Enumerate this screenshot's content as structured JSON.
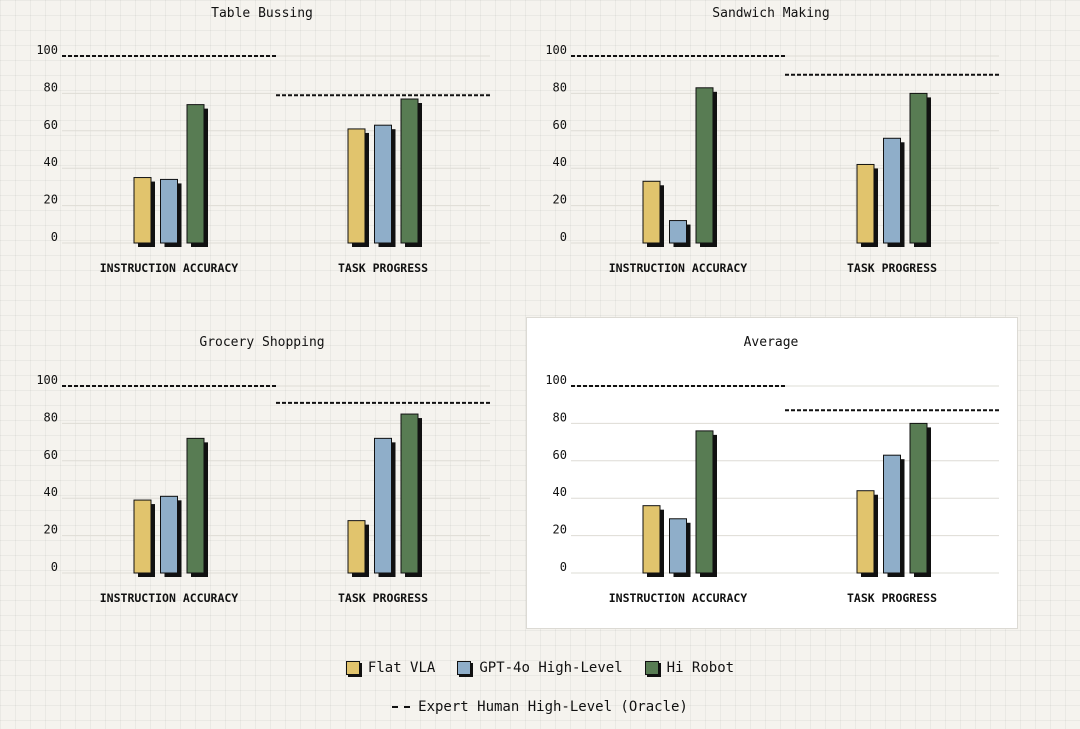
{
  "colors": {
    "flat_vla": "#e1c46d",
    "gpt4o": "#8faec9",
    "hi_robot": "#587c53",
    "shadow": "#111111",
    "grid": "#dedcd5",
    "oracle": "#111111"
  },
  "legend": {
    "items": [
      {
        "label": "Flat VLA",
        "color": "#e1c46d"
      },
      {
        "label": "GPT-4o High-Level",
        "color": "#8faec9"
      },
      {
        "label": "Hi Robot",
        "color": "#587c53"
      }
    ],
    "oracle_label": "Expert Human High-Level (Oracle)"
  },
  "chart_data": [
    {
      "type": "bar",
      "title": "Table Bussing",
      "categories": [
        "INSTRUCTION ACCURACY",
        "TASK PROGRESS"
      ],
      "series": [
        {
          "name": "Flat VLA",
          "values": [
            35,
            61
          ]
        },
        {
          "name": "GPT-4o High-Level",
          "values": [
            34,
            63
          ]
        },
        {
          "name": "Hi Robot",
          "values": [
            74,
            77
          ]
        }
      ],
      "oracle": [
        100,
        79
      ],
      "yticks": [
        0,
        20,
        40,
        60,
        80,
        100
      ],
      "ylim": [
        0,
        100
      ]
    },
    {
      "type": "bar",
      "title": "Sandwich Making",
      "categories": [
        "INSTRUCTION ACCURACY",
        "TASK PROGRESS"
      ],
      "series": [
        {
          "name": "Flat VLA",
          "values": [
            33,
            42
          ]
        },
        {
          "name": "GPT-4o High-Level",
          "values": [
            12,
            56
          ]
        },
        {
          "name": "Hi Robot",
          "values": [
            83,
            80
          ]
        }
      ],
      "oracle": [
        100,
        90
      ],
      "yticks": [
        0,
        20,
        40,
        60,
        80,
        100
      ],
      "ylim": [
        0,
        100
      ]
    },
    {
      "type": "bar",
      "title": "Grocery Shopping",
      "categories": [
        "INSTRUCTION ACCURACY",
        "TASK PROGRESS"
      ],
      "series": [
        {
          "name": "Flat VLA",
          "values": [
            39,
            28
          ]
        },
        {
          "name": "GPT-4o High-Level",
          "values": [
            41,
            72
          ]
        },
        {
          "name": "Hi Robot",
          "values": [
            72,
            85
          ]
        }
      ],
      "oracle": [
        100,
        91
      ],
      "yticks": [
        0,
        20,
        40,
        60,
        80,
        100
      ],
      "ylim": [
        0,
        100
      ]
    },
    {
      "type": "bar",
      "title": "Average",
      "categories": [
        "INSTRUCTION ACCURACY",
        "TASK PROGRESS"
      ],
      "series": [
        {
          "name": "Flat VLA",
          "values": [
            36,
            44
          ]
        },
        {
          "name": "GPT-4o High-Level",
          "values": [
            29,
            63
          ]
        },
        {
          "name": "Hi Robot",
          "values": [
            76,
            80
          ]
        }
      ],
      "oracle": [
        100,
        87
      ],
      "yticks": [
        0,
        20,
        40,
        60,
        80,
        100
      ],
      "ylim": [
        0,
        100
      ]
    }
  ]
}
